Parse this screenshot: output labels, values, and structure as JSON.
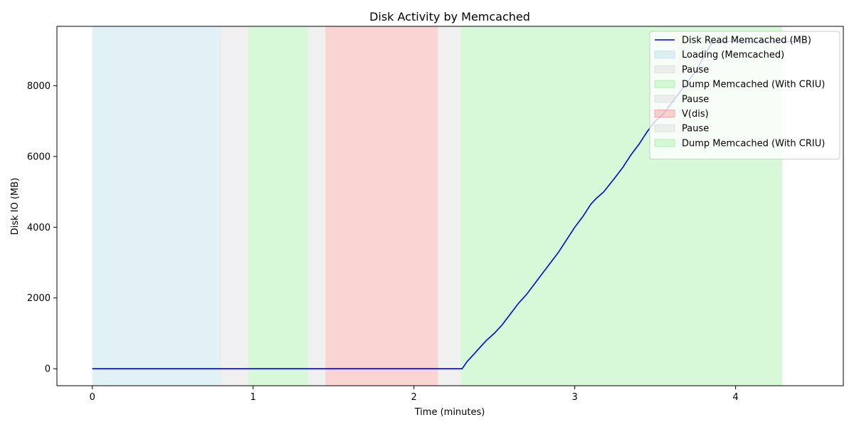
{
  "chart_data": {
    "type": "line",
    "title": "Disk Activity by Memcached",
    "xlabel": "Time (minutes)",
    "ylabel": "Disk IO (MB)",
    "xlim": [
      -0.22,
      4.67
    ],
    "ylim": [
      -480,
      9680
    ],
    "xticks": [
      0,
      1,
      2,
      3,
      4
    ],
    "yticks": [
      0,
      2000,
      4000,
      6000,
      8000
    ],
    "grid": false,
    "legend_position": "top-right",
    "series": [
      {
        "name": "Disk Read Memcached (MB)",
        "color": "#0000ee",
        "x": [
          0,
          2.3,
          2.33,
          2.37,
          2.41,
          2.45,
          2.5,
          2.55,
          2.6,
          2.65,
          2.7,
          2.75,
          2.8,
          2.85,
          2.9,
          2.95,
          3.0,
          3.05,
          3.1,
          3.13,
          3.18,
          3.25,
          3.3,
          3.35,
          3.4,
          3.45,
          3.5,
          3.55,
          3.6,
          3.65,
          3.7,
          3.75,
          3.8,
          3.85,
          3.88,
          4.0,
          4.2,
          4.4
        ],
        "y": [
          0,
          0,
          200,
          400,
          600,
          800,
          1000,
          1250,
          1550,
          1850,
          2100,
          2400,
          2700,
          3000,
          3300,
          3650,
          4000,
          4300,
          4650,
          4800,
          5000,
          5400,
          5700,
          6050,
          6350,
          6700,
          7000,
          7200,
          7500,
          7800,
          8100,
          8400,
          8800,
          9200,
          9250,
          9250,
          9250,
          9250
        ]
      }
    ],
    "spans": [
      {
        "label": "Loading (Memcached)",
        "start": 0.0,
        "end": 0.8,
        "color": "#add8e6",
        "opacity": 0.35
      },
      {
        "label": "Pause",
        "start": 0.8,
        "end": 0.97,
        "color": "#d3d3d3",
        "opacity": 0.35
      },
      {
        "label": "Dump Memcached (With CRIU)",
        "start": 0.97,
        "end": 1.34,
        "color": "#90ee90",
        "opacity": 0.35
      },
      {
        "label": "Pause",
        "start": 1.34,
        "end": 1.45,
        "color": "#d3d3d3",
        "opacity": 0.35
      },
      {
        "label": "V(dis)",
        "start": 1.45,
        "end": 2.15,
        "color": "#f08080",
        "opacity": 0.35
      },
      {
        "label": "Pause",
        "start": 2.15,
        "end": 2.29,
        "color": "#d3d3d3",
        "opacity": 0.35
      },
      {
        "label": "Dump Memcached (With CRIU)",
        "start": 2.29,
        "end": 4.29,
        "color": "#90ee90",
        "opacity": 0.35
      }
    ]
  }
}
